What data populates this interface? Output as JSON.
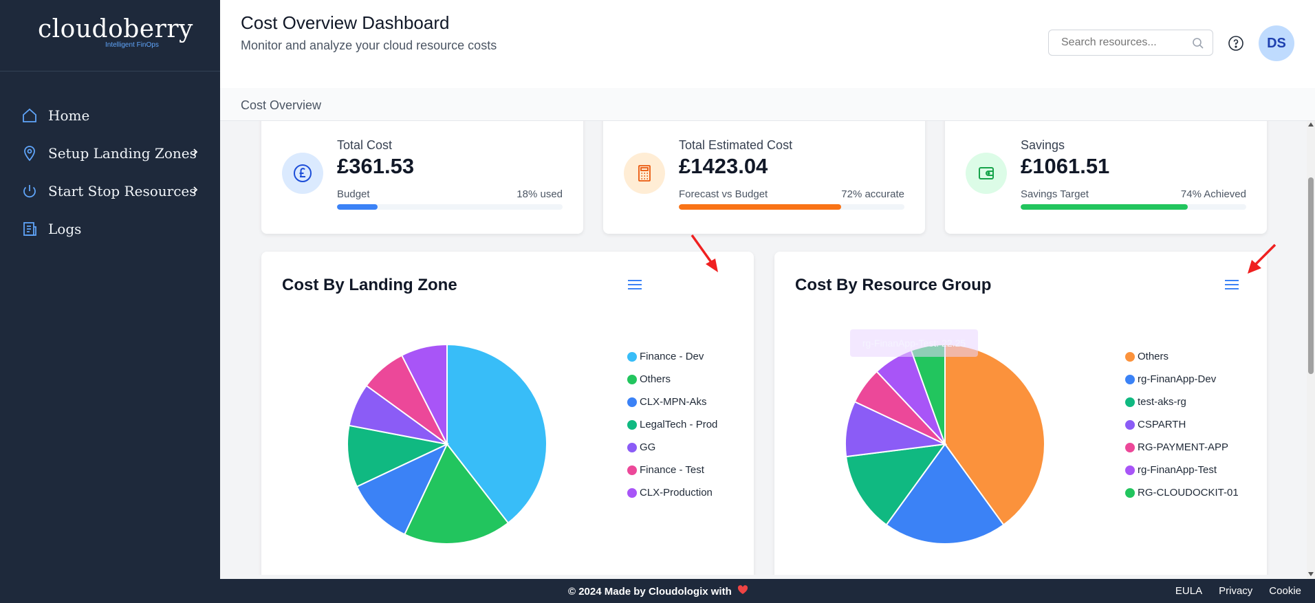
{
  "brand": {
    "name": "cloudoberry",
    "tagline": "Intelligent FinOps"
  },
  "sidebar": {
    "items": [
      {
        "label": "Home",
        "icon": "home-icon",
        "has_chevron": false
      },
      {
        "label": "Setup Landing Zones",
        "icon": "location-pin-icon",
        "has_chevron": true
      },
      {
        "label": "Start Stop Resources",
        "icon": "power-icon",
        "has_chevron": true
      },
      {
        "label": "Logs",
        "icon": "document-icon",
        "has_chevron": false
      }
    ]
  },
  "header": {
    "title": "Cost Overview Dashboard",
    "subtitle": "Monitor and analyze your cloud resource costs",
    "search_placeholder": "Search resources...",
    "avatar_initials": "DS"
  },
  "breadcrumb": "Cost Overview",
  "stats": [
    {
      "label": "Total Cost",
      "value": "£361.53",
      "sub_label": "Budget",
      "right_label": "18% used",
      "progress": 0.18,
      "color": "#3b82f6",
      "icon": "pound-icon",
      "icon_bg": "#dbeafe"
    },
    {
      "label": "Total Estimated Cost",
      "value": "£1423.04",
      "sub_label": "Forecast vs Budget",
      "right_label": "72% accurate",
      "progress": 0.72,
      "color": "#f97316",
      "icon": "calculator-icon",
      "icon_bg": "#ffedd5"
    },
    {
      "label": "Savings",
      "value": "£1061.51",
      "sub_label": "Savings Target",
      "right_label": "74% Achieved",
      "progress": 0.74,
      "color": "#22c55e",
      "icon": "wallet-icon",
      "icon_bg": "#dcfce7"
    }
  ],
  "chart_data": [
    {
      "type": "pie",
      "title": "Cost By Landing Zone",
      "categories": [
        "Finance - Dev",
        "Others",
        "CLX-MPN-Aks",
        "LegalTech - Prod",
        "GG",
        "Finance - Test",
        "CLX-Production"
      ],
      "values": [
        39.5,
        17.5,
        11,
        10,
        7,
        7.5,
        7.5
      ],
      "colors": [
        "#38bdf8",
        "#22c55e",
        "#3b82f6",
        "#10b981",
        "#8b5cf6",
        "#ec4899",
        "#a855f7"
      ],
      "legend": "right"
    },
    {
      "type": "pie",
      "title": "Cost By Resource Group",
      "categories": [
        "Others",
        "rg-FinanApp-Dev",
        "test-aks-rg",
        "CSPARTH",
        "RG-PAYMENT-APP",
        "rg-FinanApp-Test",
        "RG-CLOUDOCKIT-01"
      ],
      "values": [
        40,
        20,
        13,
        9,
        6,
        6.5,
        5.5
      ],
      "colors": [
        "#fb923c",
        "#3b82f6",
        "#10b981",
        "#8b5cf6",
        "#ec4899",
        "#a855f7",
        "#22c55e"
      ],
      "legend": "right",
      "tooltip": "rg-FinanApp-Test: 22.25"
    }
  ],
  "footer": {
    "copyright": "© 2024 Made by Cloudologix with",
    "links": [
      "EULA",
      "Privacy",
      "Cookie"
    ]
  }
}
